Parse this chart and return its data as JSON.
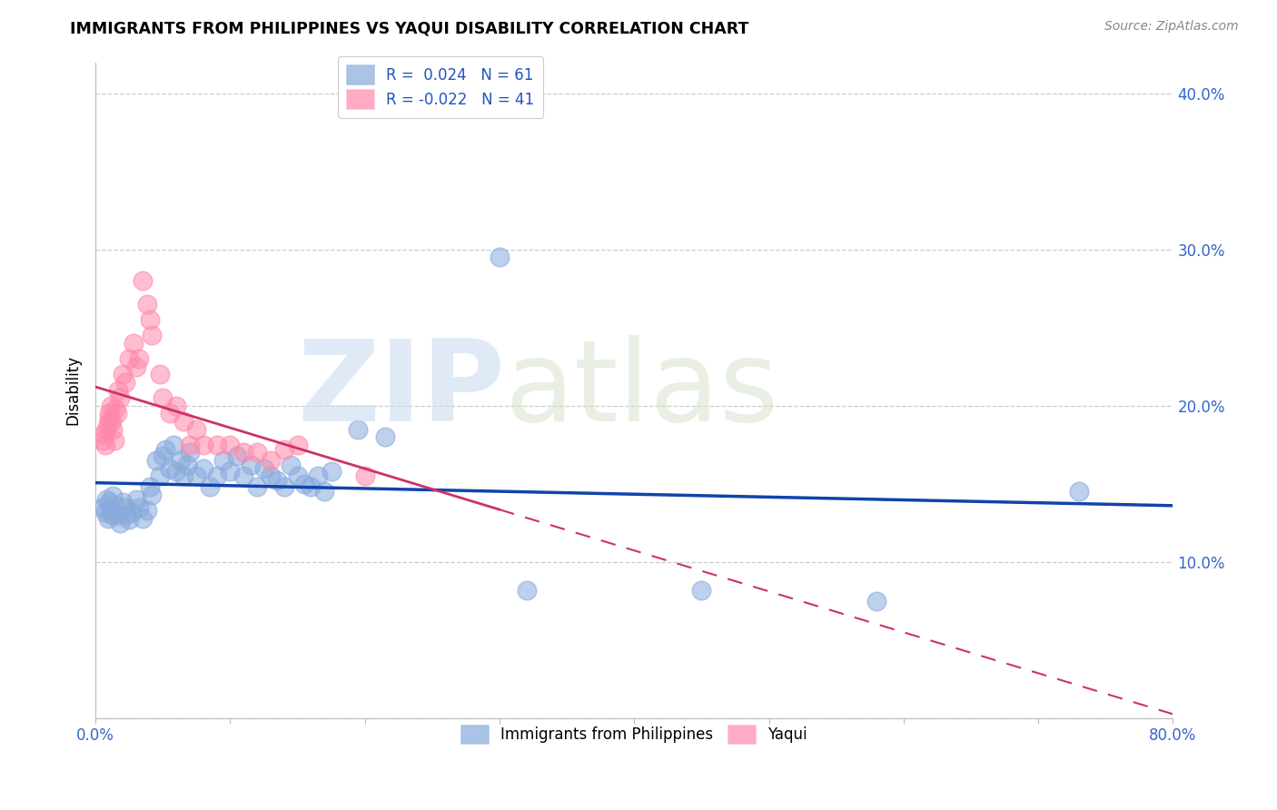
{
  "title": "IMMIGRANTS FROM PHILIPPINES VS YAQUI DISABILITY CORRELATION CHART",
  "source": "Source: ZipAtlas.com",
  "ylabel": "Disability",
  "blue_R": "0.024",
  "blue_N": "61",
  "pink_R": "-0.022",
  "pink_N": "41",
  "legend_label_blue": "Immigrants from Philippines",
  "legend_label_pink": "Yaqui",
  "blue_color": "#88aadd",
  "pink_color": "#ff88aa",
  "blue_line_color": "#1144aa",
  "pink_line_color": "#cc3366",
  "xlim": [
    0.0,
    0.8
  ],
  "ylim": [
    0.0,
    0.42
  ],
  "blue_x": [
    0.005,
    0.007,
    0.008,
    0.009,
    0.01,
    0.011,
    0.012,
    0.013,
    0.015,
    0.016,
    0.018,
    0.02,
    0.022,
    0.023,
    0.025,
    0.027,
    0.03,
    0.032,
    0.035,
    0.038,
    0.04,
    0.042,
    0.045,
    0.048,
    0.05,
    0.052,
    0.055,
    0.058,
    0.06,
    0.063,
    0.065,
    0.068,
    0.07,
    0.075,
    0.08,
    0.085,
    0.09,
    0.095,
    0.1,
    0.105,
    0.11,
    0.115,
    0.12,
    0.125,
    0.13,
    0.135,
    0.14,
    0.145,
    0.15,
    0.155,
    0.16,
    0.165,
    0.17,
    0.175,
    0.195,
    0.215,
    0.3,
    0.32,
    0.45,
    0.58,
    0.73
  ],
  "blue_y": [
    0.135,
    0.132,
    0.14,
    0.128,
    0.138,
    0.133,
    0.13,
    0.142,
    0.136,
    0.13,
    0.125,
    0.138,
    0.135,
    0.13,
    0.127,
    0.132,
    0.14,
    0.135,
    0.128,
    0.133,
    0.148,
    0.143,
    0.165,
    0.155,
    0.168,
    0.172,
    0.16,
    0.175,
    0.158,
    0.165,
    0.155,
    0.162,
    0.17,
    0.155,
    0.16,
    0.148,
    0.155,
    0.165,
    0.158,
    0.168,
    0.155,
    0.162,
    0.148,
    0.16,
    0.155,
    0.152,
    0.148,
    0.162,
    0.155,
    0.15,
    0.148,
    0.155,
    0.145,
    0.158,
    0.185,
    0.18,
    0.295,
    0.082,
    0.082,
    0.075,
    0.145
  ],
  "pink_x": [
    0.005,
    0.006,
    0.007,
    0.008,
    0.009,
    0.01,
    0.01,
    0.011,
    0.012,
    0.013,
    0.014,
    0.015,
    0.016,
    0.017,
    0.018,
    0.02,
    0.022,
    0.025,
    0.028,
    0.03,
    0.032,
    0.035,
    0.038,
    0.04,
    0.042,
    0.048,
    0.05,
    0.055,
    0.06,
    0.065,
    0.07,
    0.075,
    0.08,
    0.09,
    0.1,
    0.11,
    0.12,
    0.13,
    0.14,
    0.15,
    0.2
  ],
  "pink_y": [
    0.178,
    0.182,
    0.175,
    0.185,
    0.188,
    0.192,
    0.195,
    0.2,
    0.19,
    0.185,
    0.178,
    0.198,
    0.195,
    0.21,
    0.205,
    0.22,
    0.215,
    0.23,
    0.24,
    0.225,
    0.23,
    0.28,
    0.265,
    0.255,
    0.245,
    0.22,
    0.205,
    0.195,
    0.2,
    0.19,
    0.175,
    0.185,
    0.175,
    0.175,
    0.175,
    0.17,
    0.17,
    0.165,
    0.172,
    0.175,
    0.155
  ],
  "pink_line_x_end": 0.8,
  "pink_line_style": "--"
}
